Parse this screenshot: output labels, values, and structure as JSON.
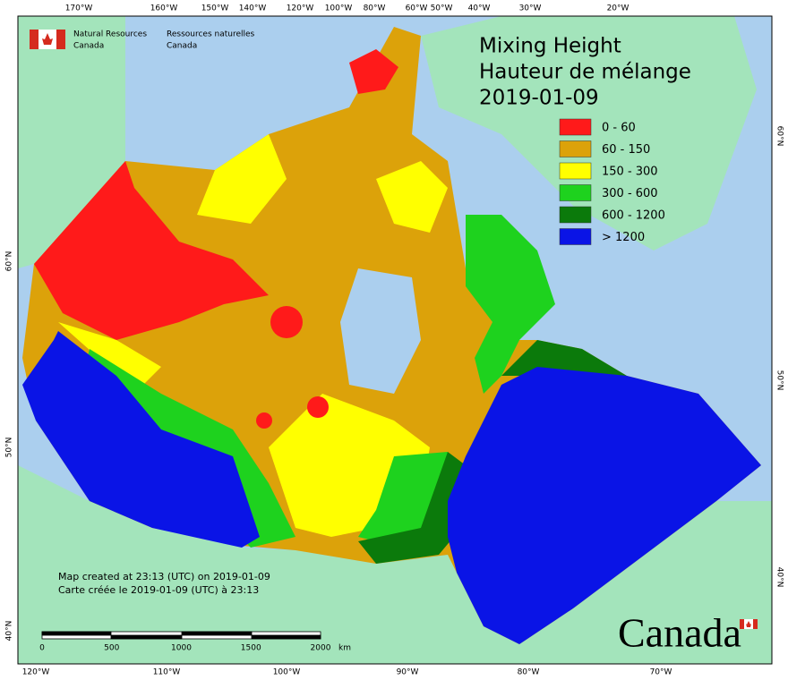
{
  "header": {
    "agency_en": [
      "Natural Resources",
      "Canada"
    ],
    "agency_fr": [
      "Ressources naturelles",
      "Canada"
    ]
  },
  "title": {
    "lines": [
      "Mixing Height",
      "Hauteur de mélange",
      "2019-01-09"
    ]
  },
  "legend": [
    {
      "label": "0 - 60",
      "color": "#ff1a1a"
    },
    {
      "label": "60 - 150",
      "color": "#dca20a"
    },
    {
      "label": "150 - 300",
      "color": "#ffff00"
    },
    {
      "label": "300 - 600",
      "color": "#1ed21e"
    },
    {
      "label": "600 - 1200",
      "color": "#0b7a0b"
    },
    {
      "label": "> 1200",
      "color": "#0a14e6"
    }
  ],
  "graticule": {
    "top": [
      "170°W",
      "160°W",
      "150°W",
      "140°W",
      "120°W",
      "100°W",
      "80°W",
      "60°W",
      "50°W",
      "40°W",
      "30°W",
      "20°W"
    ],
    "bottom": [
      "120°W",
      "110°W",
      "100°W",
      "90°W",
      "80°W",
      "70°W"
    ],
    "left": [
      "60°N",
      "50°N",
      "40°N"
    ],
    "right": [
      "60°N",
      "50°N",
      "40°N"
    ]
  },
  "scale_bar": {
    "ticks": [
      0,
      500,
      1000,
      1500,
      2000
    ],
    "unit": "km"
  },
  "credits": [
    "Map created at 23:13 (UTC) on 2019-01-09",
    "Carte créée le 2019-01-09 (UTC) à 23:13"
  ],
  "wordmark": "Canada"
}
